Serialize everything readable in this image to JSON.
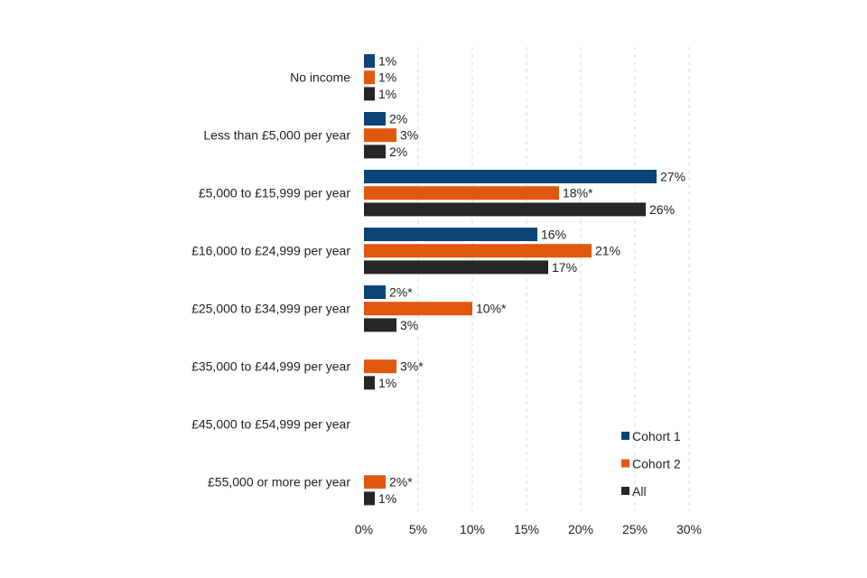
{
  "chart_data": {
    "type": "bar",
    "orientation": "horizontal",
    "categories": [
      "No income",
      "Less than £5,000 per year",
      "£5,000 to £15,999 per year",
      "£16,000 to £24,999 per year",
      "£25,000 to £34,999 per year",
      "£35,000 to £44,999 per year",
      "£45,000 to £54,999 per year",
      "£55,000 or more per year"
    ],
    "series": [
      {
        "name": "Cohort 1",
        "color": "#0b4479",
        "values": [
          1,
          2,
          27,
          16,
          2,
          null,
          null,
          null
        ],
        "labels": [
          "1%",
          "2%",
          "27%",
          "16%",
          "2%*",
          "",
          "",
          ""
        ]
      },
      {
        "name": "Cohort 2",
        "color": "#e0580e",
        "values": [
          1,
          3,
          18,
          21,
          10,
          3,
          null,
          2
        ],
        "labels": [
          "1%",
          "3%",
          "18%*",
          "21%",
          "10%*",
          "3%*",
          "",
          "2%*"
        ]
      },
      {
        "name": "All",
        "color": "#262626",
        "values": [
          1,
          2,
          26,
          17,
          3,
          1,
          null,
          1
        ],
        "labels": [
          "1%",
          "2%",
          "26%",
          "17%",
          "3%",
          "1%",
          "",
          "1%"
        ]
      }
    ],
    "xlim": [
      0,
      30
    ],
    "xticks": [
      0,
      5,
      10,
      15,
      20,
      25,
      30
    ],
    "xtick_labels": [
      "0%",
      "5%",
      "10%",
      "15%",
      "20%",
      "25%",
      "30%"
    ],
    "grid": "vertical dashed",
    "legend_position": "bottom-right",
    "title": "",
    "xlabel": "",
    "ylabel": ""
  }
}
